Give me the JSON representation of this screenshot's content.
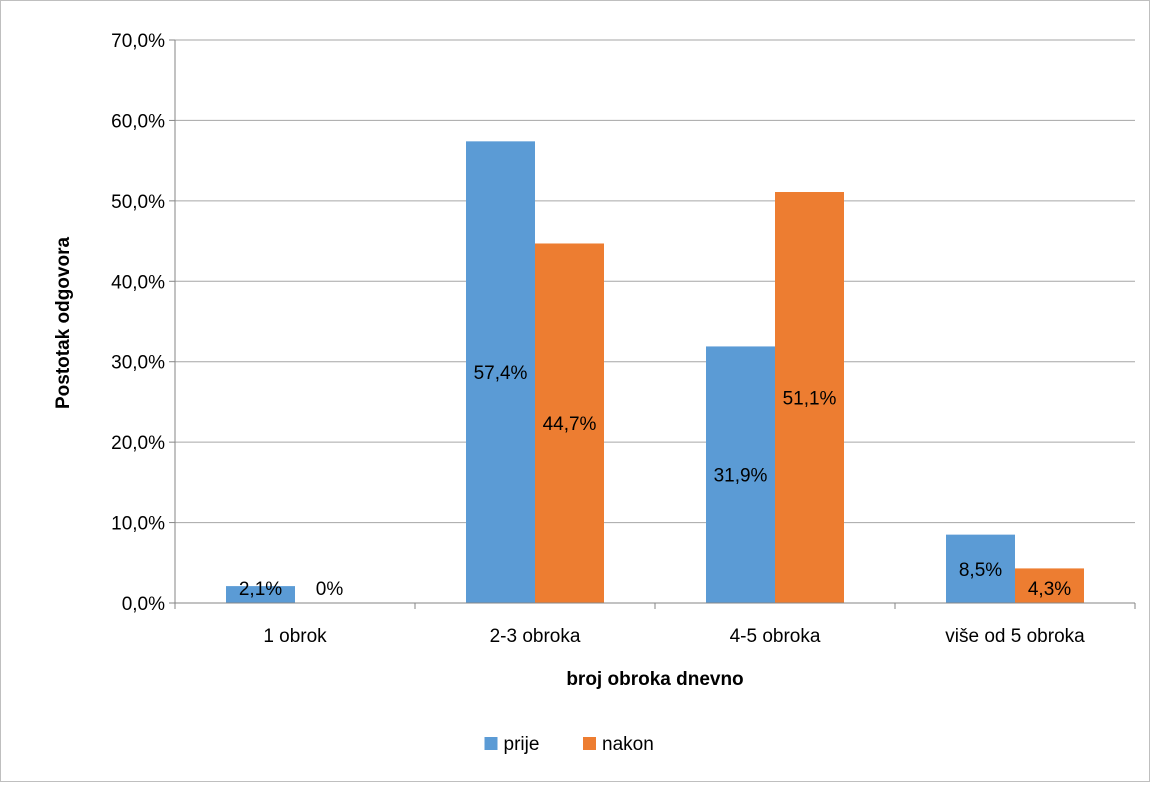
{
  "chart_data": {
    "type": "bar",
    "title": "",
    "xlabel": "broj obroka dnevno",
    "ylabel": "Postotak odgovora",
    "ylim": [
      0,
      70
    ],
    "yticks": [
      0,
      10,
      20,
      30,
      40,
      50,
      60,
      70
    ],
    "ytick_labels": [
      "0,0%",
      "10,0%",
      "20,0%",
      "30,0%",
      "40,0%",
      "50,0%",
      "60,0%",
      "70,0%"
    ],
    "categories": [
      "1 obrok",
      "2-3 obroka",
      "4-5 obroka",
      "više od 5 obroka"
    ],
    "series": [
      {
        "name": "prije",
        "color": "#5b9bd5",
        "values": [
          2.1,
          57.4,
          31.9,
          8.5
        ],
        "labels": [
          "2,1%",
          "57,4%",
          "31,9%",
          "8,5%"
        ]
      },
      {
        "name": "nakon",
        "color": "#ed7d31",
        "values": [
          0,
          44.7,
          51.1,
          4.3
        ],
        "labels": [
          "0%",
          "44,7%",
          "51,1%",
          "4,3%"
        ]
      }
    ],
    "grid": true,
    "legend_position": "bottom"
  }
}
